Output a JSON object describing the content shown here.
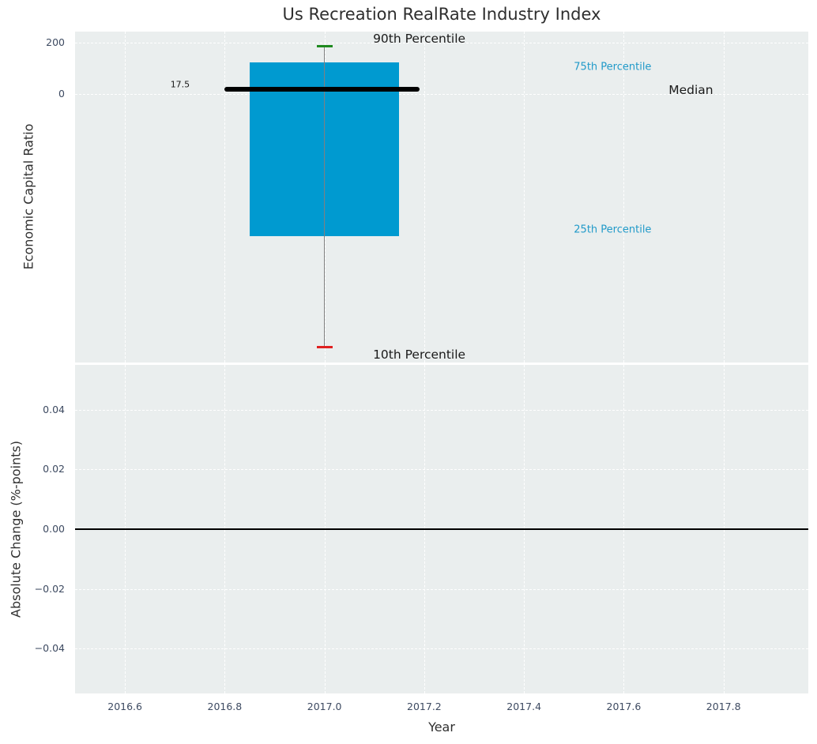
{
  "chart_data": [
    {
      "type": "boxplot",
      "title": "Us Recreation RealRate Industry Index",
      "ylabel": "Economic Capital Ratio",
      "xlim": [
        2016.5,
        2017.97
      ],
      "ylim": [
        -1046,
        243
      ],
      "grid": true,
      "yticks": [
        200,
        0
      ],
      "ytick_labels": [
        "200",
        "0"
      ],
      "xticks": [
        2016.6,
        2016.8,
        2017.0,
        2017.2,
        2017.4,
        2017.6,
        2017.8
      ],
      "box": {
        "x": 2017.0,
        "box_left": 2016.85,
        "box_right": 2017.15,
        "whisker_cap_halfwidth": 0.016,
        "p90": 186,
        "p75": 122,
        "median": 17.5,
        "p25": -554,
        "p10": -985
      },
      "median_line": {
        "x0": 2016.8,
        "x1": 2017.19,
        "y": 17.5
      },
      "annotations": [
        {
          "id": "p90-label",
          "text": "90th Percentile",
          "x": 2017.19,
          "y": 215,
          "anchor": "center",
          "color": "#1a1a1a",
          "size": 15.5
        },
        {
          "id": "p75-label",
          "text": "75th Percentile",
          "x": 2017.5,
          "y": 104,
          "anchor": "left",
          "color": "#219ac9",
          "size": 13
        },
        {
          "id": "median-label",
          "text": "Median",
          "x": 2017.69,
          "y": 15,
          "anchor": "left",
          "color": "#1a1a1a",
          "size": 15.5
        },
        {
          "id": "median-value-label",
          "text": "17.5",
          "x": 2016.73,
          "y": 38,
          "anchor": "right",
          "color": "#1a1a1a",
          "size": 11
        },
        {
          "id": "p25-label",
          "text": "25th Percentile",
          "x": 2017.5,
          "y": -529,
          "anchor": "left",
          "color": "#219ac9",
          "size": 13
        },
        {
          "id": "p10-label",
          "text": "10th Percentile",
          "x": 2017.19,
          "y": -1015,
          "anchor": "center",
          "color": "#1a1a1a",
          "size": 15.5
        }
      ],
      "colors": {
        "box_fill": "#009ad0",
        "median": "#000000",
        "whisker": "#808080",
        "p90_cap": "#1f8a1f",
        "p10_cap": "#e02020"
      }
    },
    {
      "type": "line",
      "xlabel": "Year",
      "ylabel": "Absolute Change (%-points)",
      "xlim": [
        2016.5,
        2017.97
      ],
      "ylim": [
        -0.055,
        0.055
      ],
      "grid": true,
      "yticks": [
        0.04,
        0.02,
        0.0,
        -0.02,
        -0.04
      ],
      "ytick_labels": [
        "0.04",
        "0.02",
        "0.00",
        "−0.02",
        "−0.04"
      ],
      "xticks": [
        2016.6,
        2016.8,
        2017.0,
        2017.2,
        2017.4,
        2017.6,
        2017.8
      ],
      "xtick_labels": [
        "2016.6",
        "2016.8",
        "2017.0",
        "2017.2",
        "2017.4",
        "2017.6",
        "2017.8"
      ],
      "series": [],
      "zero_line": true
    }
  ],
  "colors": {
    "plot_bg": "#eaeeee",
    "grid": "#ffffff",
    "tick_label": "#3d4a61",
    "text": "#2f2f2f"
  }
}
